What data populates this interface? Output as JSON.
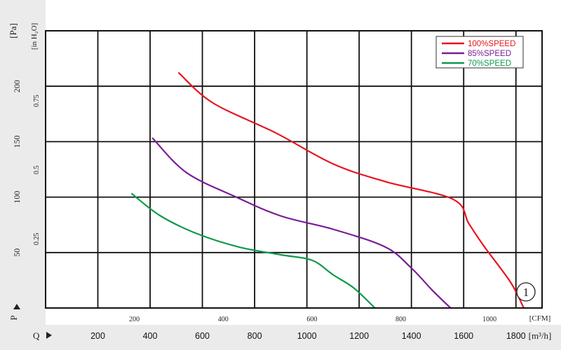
{
  "chart_data": {
    "type": "line",
    "title": "",
    "ylabel_pa": "[Pa]",
    "ylabel_inh2o": "[in H₂O]",
    "y_axis_marker": "P",
    "x_axis_marker": "Q",
    "xlabel_cfm": "[CFM]",
    "xlabel_m3h": "[m³/h]",
    "curve_badge": "①",
    "x_unit": "m³/h",
    "y_unit": "Pa",
    "xlim": [
      0,
      1900
    ],
    "ylim": [
      0,
      250
    ],
    "grid": true,
    "legend_position": "top-right",
    "x_ticks_m3h": [
      "200",
      "400",
      "600",
      "800",
      "1000",
      "1200",
      "1400",
      "1600",
      "1800"
    ],
    "x_ticks_cfm": [
      "200",
      "400",
      "600",
      "800",
      "1000"
    ],
    "y_ticks_pa": [
      "50",
      "100",
      "150",
      "200"
    ],
    "y_ticks_inh2o": [
      "0.25",
      "0.5",
      "0.75"
    ],
    "series": [
      {
        "name": "100%SPEED",
        "color": "#e8141e",
        "points": [
          [
            510,
            212
          ],
          [
            640,
            185
          ],
          [
            880,
            158
          ],
          [
            1100,
            130
          ],
          [
            1300,
            114
          ],
          [
            1560,
            98
          ],
          [
            1620,
            76
          ],
          [
            1680,
            55
          ],
          [
            1780,
            23
          ],
          [
            1830,
            0
          ]
        ]
      },
      {
        "name": "85%SPEED",
        "color": "#7a1d96",
        "points": [
          [
            410,
            153
          ],
          [
            540,
            122
          ],
          [
            730,
            100
          ],
          [
            900,
            83
          ],
          [
            1100,
            71
          ],
          [
            1300,
            55
          ],
          [
            1400,
            36
          ],
          [
            1480,
            16
          ],
          [
            1550,
            0
          ]
        ]
      },
      {
        "name": "70%SPEED",
        "color": "#0d9a4b",
        "points": [
          [
            330,
            103
          ],
          [
            440,
            83
          ],
          [
            580,
            67
          ],
          [
            740,
            55
          ],
          [
            900,
            48
          ],
          [
            1020,
            43
          ],
          [
            1100,
            30
          ],
          [
            1180,
            18
          ],
          [
            1260,
            0
          ]
        ]
      }
    ]
  }
}
